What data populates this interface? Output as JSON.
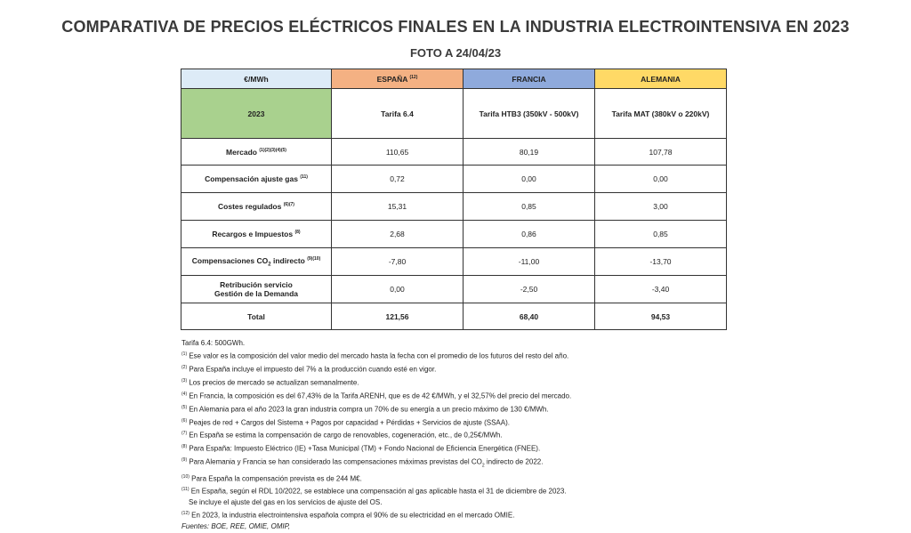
{
  "title": "COMPARATIVA DE PRECIOS ELÉCTRICOS FINALES EN LA INDUSTRIA ELECTROINTENSIVA EN 2023",
  "subtitle": "FOTO A 24/04/23",
  "table": {
    "unit": "€/MWh",
    "countries": [
      {
        "name": "ESPAÑA",
        "sup": "(12)"
      },
      {
        "name": "FRANCIA",
        "sup": ""
      },
      {
        "name": "ALEMANIA",
        "sup": ""
      }
    ],
    "year": "2023",
    "tariffs": [
      "Tarifa 6.4",
      "Tarifa HTB3 (350kV - 500kV)",
      "Tarifa MAT (380kV o 220kV)"
    ],
    "rows": [
      {
        "label": "Mercado",
        "sup": "(1)(2)(3)(4)(5)",
        "values": [
          "110,65",
          "80,19",
          "107,78"
        ]
      },
      {
        "label": "Compensación ajuste gas",
        "sup": "(11)",
        "values": [
          "0,72",
          "0,00",
          "0,00"
        ]
      },
      {
        "label": "Costes regulados",
        "sup": "(6)(7)",
        "values": [
          "15,31",
          "0,85",
          "3,00"
        ]
      },
      {
        "label": "Recargos e Impuestos",
        "sup": "(8)",
        "values": [
          "2,68",
          "0,86",
          "0,85"
        ]
      },
      {
        "label_pre": "Compensaciones CO",
        "label_sub": "2",
        "label_post": " indirecto",
        "sup": "(9)(10)",
        "values": [
          "-7,80",
          "-11,00",
          "-13,70"
        ]
      },
      {
        "label_line1": "Retribución servicio",
        "label_line2": "Gestión de la Demanda",
        "values": [
          "0,00",
          "-2,50",
          "-3,40"
        ]
      }
    ],
    "total": {
      "label": "Total",
      "values": [
        "121,56",
        "68,40",
        "94,53"
      ]
    }
  },
  "notes": {
    "tarifa": "Tarifa 6.4: 500GWh.",
    "items": [
      {
        "sup": "(1)",
        "text": " Ese valor es la composición del valor medio del mercado hasta la fecha con el promedio de los futuros del resto del año."
      },
      {
        "sup": "(2)",
        "text": " Para España incluye el impuesto del 7% a la producción cuando esté en vigor."
      },
      {
        "sup": "(3)",
        "text": " Los precios de mercado se actualizan semanalmente."
      },
      {
        "sup": "(4)",
        "text": " En Francia, la composición es del 67,43% de la Tarifa ARENH, que es de 42 €/MWh, y el 32,57% del precio del mercado."
      },
      {
        "sup": "(5)",
        "text": " En Alemania para el año 2023 la gran industria compra un 70% de su energía a un precio máximo de 130 €/MWh."
      },
      {
        "sup": "(6)",
        "text": " Peajes de red + Cargos del Sistema + Pagos por capacidad + Pérdidas + Servicios de ajuste (SSAA)."
      },
      {
        "sup": "(7)",
        "text": " En España se estima la compensación de cargo de renovables, cogeneración, etc., de 0,25€/MWh."
      },
      {
        "sup": "(8)",
        "text": " Para España: Impuesto Eléctrico (IE) +Tasa Municipal (TM) + Fondo Nacional de Eficiencia Energética (FNEE)."
      }
    ],
    "note9": {
      "sup": "(9)",
      "pre": " Para Alemania y Francia se han considerado las compensaciones máximas previstas del CO",
      "sub": "2",
      "post": " indirecto de 2022."
    },
    "note10": {
      "sup": "(10)",
      "text": " Para España la compensación prevista es de 244 M€."
    },
    "note11": {
      "sup": "(11)",
      "line1": " En España, según el RDL 10/2022, se establece una compensación al gas aplicable hasta el 31 de diciembre de 2023.",
      "line2": "Se incluye el ajuste del gas en los servicios de ajuste del OS."
    },
    "note12": {
      "sup": "(12)",
      "text": " En 2023, la industria electrointensiva española compra el 90% de su electricidad en el mercado OMIE."
    },
    "sources": "Fuentes: BOE, REE, OMIE, OMIP,"
  }
}
